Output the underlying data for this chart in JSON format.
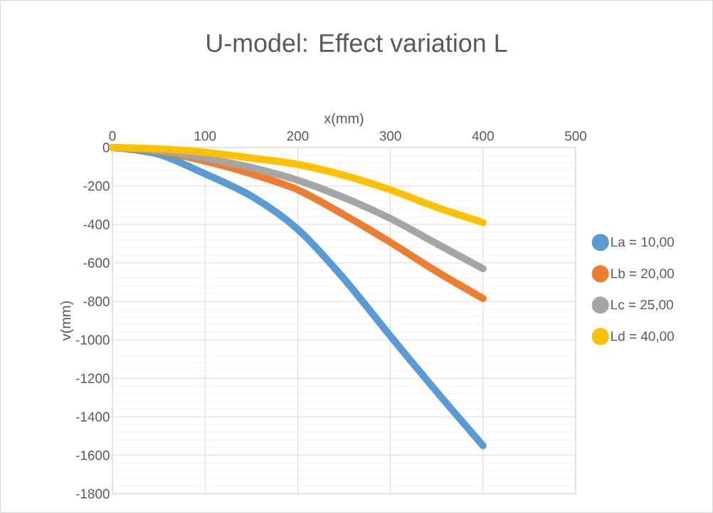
{
  "chart_data": {
    "type": "line",
    "title": "U-model: Effect variation L",
    "xlabel": "x(mm)",
    "ylabel": "v(mm)",
    "x": [
      0,
      50,
      100,
      150,
      200,
      250,
      300,
      350,
      400
    ],
    "series": [
      {
        "name": "La = 10,00",
        "color": "#5b9bd5",
        "values": [
          0,
          -35,
          -137,
          -253,
          -425,
          -683,
          -980,
          -1270,
          -1550
        ]
      },
      {
        "name": "Lb = 20,00",
        "color": "#ed7d31",
        "values": [
          0,
          -20,
          -71,
          -137,
          -220,
          -350,
          -493,
          -645,
          -785
        ]
      },
      {
        "name": "Lc = 25,00",
        "color": "#a5a5a5",
        "values": [
          0,
          -15,
          -55,
          -104,
          -170,
          -261,
          -369,
          -500,
          -630
        ]
      },
      {
        "name": "Ld = 40,00",
        "color": "#ffc000",
        "values": [
          0,
          -7,
          -25,
          -55,
          -88,
          -145,
          -220,
          -311,
          -390
        ]
      }
    ],
    "xlim": [
      0,
      500
    ],
    "ylim": [
      -1800,
      0
    ],
    "xticks": [
      0,
      100,
      200,
      300,
      400,
      500
    ],
    "yticks": [
      0,
      -200,
      -400,
      -600,
      -800,
      -1000,
      -1200,
      -1400,
      -1600,
      -1800
    ],
    "grid": true,
    "legend": "right",
    "line_style": "solid"
  }
}
